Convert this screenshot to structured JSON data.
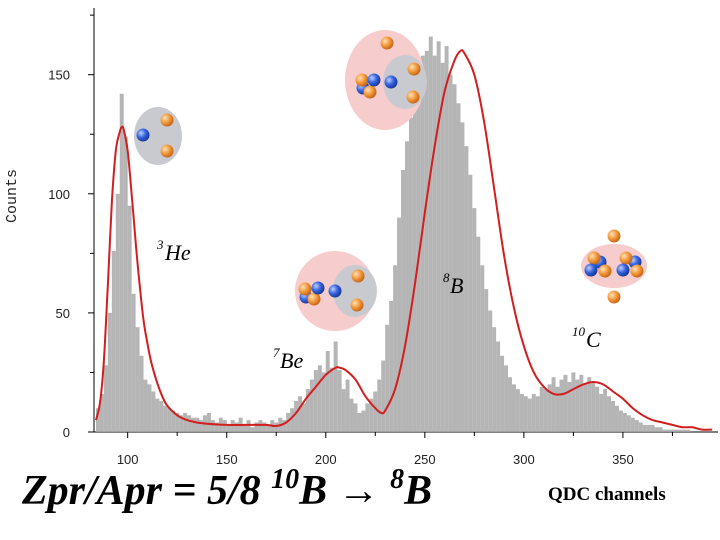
{
  "chart_data": {
    "type": "line",
    "xlabel": "QDC channels",
    "ylabel": "Counts",
    "xlim": [
      83,
      398
    ],
    "ylim": [
      0,
      178
    ],
    "xticks": [
      100,
      150,
      200,
      250,
      300,
      350
    ],
    "yticks": [
      0,
      50,
      100,
      150
    ],
    "series": [
      {
        "name": "histogram",
        "color": "#a8a8a8",
        "x": [
          85,
          87,
          89,
          91,
          93,
          95,
          97,
          99,
          101,
          103,
          105,
          107,
          109,
          111,
          113,
          115,
          117,
          119,
          121,
          123,
          125,
          127,
          129,
          131,
          133,
          135,
          137,
          139,
          141,
          143,
          145,
          147,
          149,
          151,
          153,
          155,
          157,
          159,
          161,
          163,
          165,
          167,
          169,
          171,
          173,
          175,
          177,
          179,
          181,
          183,
          185,
          187,
          189,
          191,
          193,
          195,
          197,
          199,
          201,
          203,
          205,
          207,
          209,
          211,
          213,
          215,
          217,
          219,
          221,
          223,
          225,
          227,
          229,
          231,
          233,
          235,
          237,
          239,
          241,
          243,
          245,
          247,
          249,
          251,
          253,
          255,
          257,
          259,
          261,
          263,
          265,
          267,
          269,
          271,
          273,
          275,
          277,
          279,
          281,
          283,
          285,
          287,
          289,
          291,
          293,
          295,
          297,
          299,
          301,
          303,
          305,
          307,
          309,
          311,
          313,
          315,
          317,
          319,
          321,
          323,
          325,
          327,
          329,
          331,
          333,
          335,
          337,
          339,
          341,
          343,
          345,
          347,
          349,
          351,
          353,
          355,
          357,
          359,
          361,
          363,
          365,
          367,
          369,
          371,
          373,
          375,
          377,
          379,
          381,
          383,
          385,
          387,
          389,
          391,
          393,
          395,
          397
        ],
        "values": [
          10,
          16,
          28,
          50,
          76,
          100,
          142,
          124,
          95,
          58,
          44,
          32,
          22,
          20,
          17,
          14,
          13,
          11,
          10,
          9,
          8,
          7,
          8,
          7,
          6,
          6,
          5,
          7,
          8,
          5,
          4,
          6,
          5,
          3,
          5,
          4,
          6,
          3,
          5,
          2,
          4,
          5,
          4,
          3,
          5,
          4,
          6,
          5,
          8,
          10,
          13,
          15,
          12,
          18,
          22,
          26,
          28,
          25,
          34,
          27,
          38,
          26,
          18,
          22,
          14,
          12,
          8,
          9,
          12,
          14,
          17,
          22,
          30,
          45,
          55,
          70,
          90,
          110,
          122,
          132,
          142,
          150,
          158,
          160,
          166,
          158,
          164,
          155,
          162,
          150,
          146,
          138,
          130,
          120,
          108,
          94,
          82,
          70,
          60,
          51,
          44,
          38,
          32,
          28,
          23,
          20,
          18,
          16,
          15,
          14,
          16,
          15,
          19,
          18,
          20,
          23,
          19,
          22,
          24,
          21,
          25,
          22,
          24,
          20,
          23,
          21,
          19,
          16,
          18,
          15,
          13,
          11,
          9,
          8,
          7,
          6,
          5,
          4,
          3,
          3,
          3,
          2,
          2,
          1,
          1,
          1,
          1,
          1,
          1,
          1,
          0,
          0,
          0,
          0,
          0,
          0,
          0
        ]
      },
      {
        "name": "fit",
        "color": "#d21e1e",
        "x": [
          84,
          86,
          88,
          90,
          92,
          94,
          96,
          97,
          98,
          100,
          102,
          104,
          106,
          108,
          110,
          112,
          114,
          116,
          118,
          120,
          125,
          130,
          135,
          140,
          150,
          160,
          170,
          175,
          180,
          185,
          190,
          195,
          200,
          205,
          207,
          210,
          215,
          220,
          225,
          228,
          230,
          235,
          240,
          245,
          250,
          255,
          260,
          265,
          268,
          270,
          275,
          280,
          285,
          290,
          295,
          300,
          305,
          310,
          315,
          320,
          325,
          330,
          335,
          340,
          345,
          350,
          355,
          360,
          365,
          370,
          375,
          380,
          385,
          390,
          395
        ],
        "values": [
          5,
          12,
          30,
          62,
          96,
          118,
          126,
          128,
          127,
          118,
          100,
          80,
          62,
          47,
          37,
          29,
          23,
          18,
          14,
          11,
          7,
          5,
          4,
          3.5,
          3,
          3,
          3,
          2.5,
          4,
          8,
          14,
          19,
          24,
          27,
          27,
          26,
          22,
          15,
          10,
          8,
          9,
          18,
          36,
          62,
          92,
          120,
          143,
          156,
          160,
          159,
          150,
          130,
          102,
          74,
          52,
          36,
          25,
          19,
          16,
          16,
          18,
          20,
          21,
          20,
          17,
          14,
          10,
          7,
          5,
          4,
          3,
          2,
          2,
          1,
          1
        ]
      }
    ],
    "annotations": [
      {
        "isotope": "He",
        "mass": "3"
      },
      {
        "isotope": "Be",
        "mass": "7"
      },
      {
        "isotope": "B",
        "mass": "8"
      },
      {
        "isotope": "C",
        "mass": "10"
      }
    ]
  },
  "formula": {
    "lhs": "Zpr/Apr = 5/8 ",
    "from_mass": "10",
    "from_el": "B",
    "arrow": " → ",
    "to_mass": "8",
    "to_el": "B"
  },
  "colors": {
    "proton": "#f08a2a",
    "neutron": "#2f59d6",
    "cluster_grey": "#c9c9d0",
    "cluster_pink": "#f6cccc"
  }
}
